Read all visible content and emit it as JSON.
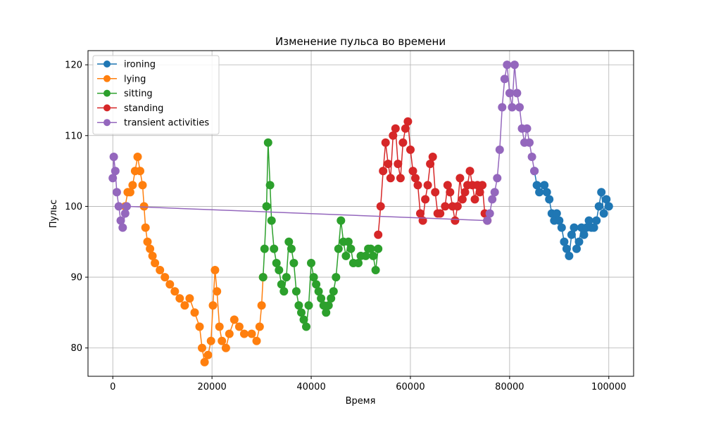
{
  "chart_data": {
    "type": "line",
    "title": "Изменение пульса во времени",
    "xlabel": "Время",
    "ylabel": "Пульс",
    "xlim": [
      -5000,
      105000
    ],
    "ylim": [
      76,
      122
    ],
    "x_ticks": [
      0,
      20000,
      40000,
      60000,
      80000,
      100000
    ],
    "y_ticks": [
      80,
      90,
      100,
      110,
      120
    ],
    "grid": true,
    "legend_position": "top-left",
    "markers": true,
    "series": [
      {
        "name": "ironing",
        "color": "#1f77b4",
        "points": [
          [
            85000,
            105
          ],
          [
            85500,
            103
          ],
          [
            86000,
            102
          ],
          [
            87000,
            103
          ],
          [
            87500,
            102
          ],
          [
            88000,
            101
          ],
          [
            88500,
            99
          ],
          [
            89000,
            98
          ],
          [
            89500,
            99
          ],
          [
            90000,
            98
          ],
          [
            90500,
            97
          ],
          [
            91000,
            95
          ],
          [
            91500,
            94
          ],
          [
            92000,
            93
          ],
          [
            92500,
            96
          ],
          [
            93000,
            97
          ],
          [
            93500,
            94
          ],
          [
            94000,
            95
          ],
          [
            94500,
            97
          ],
          [
            95000,
            96
          ],
          [
            95500,
            97
          ],
          [
            96000,
            98
          ],
          [
            96500,
            97
          ],
          [
            97000,
            97
          ],
          [
            97500,
            98
          ],
          [
            98000,
            100
          ],
          [
            98500,
            102
          ],
          [
            99000,
            99
          ],
          [
            99500,
            101
          ],
          [
            100000,
            100
          ]
        ]
      },
      {
        "name": "lying",
        "color": "#ff7f0e",
        "points": [
          [
            2500,
            100
          ],
          [
            3000,
            102
          ],
          [
            3500,
            102
          ],
          [
            4000,
            103
          ],
          [
            4500,
            105
          ],
          [
            5000,
            107
          ],
          [
            5500,
            105
          ],
          [
            6000,
            103
          ],
          [
            6300,
            100
          ],
          [
            6600,
            97
          ],
          [
            7000,
            95
          ],
          [
            7500,
            94
          ],
          [
            8000,
            93
          ],
          [
            8500,
            92
          ],
          [
            9500,
            91
          ],
          [
            10500,
            90
          ],
          [
            11500,
            89
          ],
          [
            12500,
            88
          ],
          [
            13500,
            87
          ],
          [
            14500,
            86
          ],
          [
            15500,
            87
          ],
          [
            16500,
            85
          ],
          [
            17500,
            83
          ],
          [
            18000,
            80
          ],
          [
            18500,
            78
          ],
          [
            19200,
            79
          ],
          [
            19800,
            81
          ],
          [
            20200,
            86
          ],
          [
            20600,
            91
          ],
          [
            21000,
            88
          ],
          [
            21500,
            83
          ],
          [
            22000,
            81
          ],
          [
            22800,
            80
          ],
          [
            23500,
            82
          ],
          [
            24500,
            84
          ],
          [
            25500,
            83
          ],
          [
            26500,
            82
          ],
          [
            28000,
            82
          ],
          [
            29000,
            81
          ],
          [
            29600,
            83
          ],
          [
            30000,
            86
          ],
          [
            30300,
            90
          ]
        ]
      },
      {
        "name": "sitting",
        "color": "#2ca02c",
        "points": [
          [
            30300,
            90
          ],
          [
            30600,
            94
          ],
          [
            31000,
            100
          ],
          [
            31300,
            109
          ],
          [
            31700,
            103
          ],
          [
            32000,
            98
          ],
          [
            32500,
            94
          ],
          [
            33000,
            92
          ],
          [
            33500,
            91
          ],
          [
            34000,
            89
          ],
          [
            34500,
            88
          ],
          [
            35000,
            90
          ],
          [
            35500,
            95
          ],
          [
            36000,
            94
          ],
          [
            36500,
            92
          ],
          [
            37000,
            88
          ],
          [
            37500,
            86
          ],
          [
            38000,
            85
          ],
          [
            38500,
            84
          ],
          [
            39000,
            83
          ],
          [
            39500,
            86
          ],
          [
            40000,
            92
          ],
          [
            40500,
            90
          ],
          [
            41000,
            89
          ],
          [
            41500,
            88
          ],
          [
            42000,
            87
          ],
          [
            42500,
            86
          ],
          [
            43000,
            85
          ],
          [
            43500,
            86
          ],
          [
            44000,
            87
          ],
          [
            44500,
            88
          ],
          [
            45000,
            90
          ],
          [
            45500,
            94
          ],
          [
            46000,
            98
          ],
          [
            46500,
            95
          ],
          [
            47000,
            93
          ],
          [
            47500,
            95
          ],
          [
            48000,
            94
          ],
          [
            48500,
            92
          ],
          [
            49500,
            92
          ],
          [
            50000,
            93
          ],
          [
            51000,
            93
          ],
          [
            51500,
            94
          ],
          [
            52000,
            94
          ],
          [
            52500,
            93
          ],
          [
            53000,
            91
          ],
          [
            53500,
            94
          ]
        ]
      },
      {
        "name": "standing",
        "color": "#d62728",
        "points": [
          [
            53500,
            96
          ],
          [
            54000,
            100
          ],
          [
            54500,
            105
          ],
          [
            55000,
            109
          ],
          [
            55500,
            106
          ],
          [
            56000,
            104
          ],
          [
            56500,
            110
          ],
          [
            57000,
            111
          ],
          [
            57500,
            106
          ],
          [
            58000,
            104
          ],
          [
            58500,
            109
          ],
          [
            59000,
            111
          ],
          [
            59500,
            112
          ],
          [
            60000,
            108
          ],
          [
            60500,
            105
          ],
          [
            61000,
            104
          ],
          [
            61500,
            103
          ],
          [
            62000,
            99
          ],
          [
            62500,
            98
          ],
          [
            63000,
            101
          ],
          [
            63500,
            103
          ],
          [
            64000,
            106
          ],
          [
            64500,
            107
          ],
          [
            65000,
            102
          ],
          [
            65500,
            99
          ],
          [
            66000,
            99
          ],
          [
            67000,
            100
          ],
          [
            67500,
            103
          ],
          [
            68000,
            102
          ],
          [
            68500,
            100
          ],
          [
            69000,
            98
          ],
          [
            69500,
            100
          ],
          [
            70000,
            104
          ],
          [
            70500,
            101
          ],
          [
            71000,
            102
          ],
          [
            71500,
            103
          ],
          [
            72000,
            105
          ],
          [
            72500,
            103
          ],
          [
            73000,
            101
          ],
          [
            73500,
            103
          ],
          [
            74000,
            102
          ],
          [
            74500,
            103
          ],
          [
            75000,
            99
          ],
          [
            75500,
            98
          ]
        ]
      },
      {
        "name": "transient activities",
        "color": "#9467bd",
        "points": [
          [
            0,
            104
          ],
          [
            200,
            107
          ],
          [
            500,
            105
          ],
          [
            800,
            102
          ],
          [
            1200,
            100
          ],
          [
            1600,
            98
          ],
          [
            2000,
            97
          ],
          [
            2500,
            99
          ],
          [
            2800,
            100
          ],
          [
            75500,
            98
          ],
          [
            76000,
            99
          ],
          [
            76500,
            101
          ],
          [
            77000,
            102
          ],
          [
            77500,
            104
          ],
          [
            78000,
            108
          ],
          [
            78500,
            114
          ],
          [
            79000,
            118
          ],
          [
            79500,
            120
          ],
          [
            80000,
            116
          ],
          [
            80500,
            114
          ],
          [
            81000,
            120
          ],
          [
            81500,
            116
          ],
          [
            82000,
            114
          ],
          [
            82500,
            111
          ],
          [
            83000,
            109
          ],
          [
            83500,
            111
          ],
          [
            84000,
            109
          ],
          [
            84500,
            107
          ],
          [
            85000,
            105
          ]
        ]
      }
    ]
  }
}
